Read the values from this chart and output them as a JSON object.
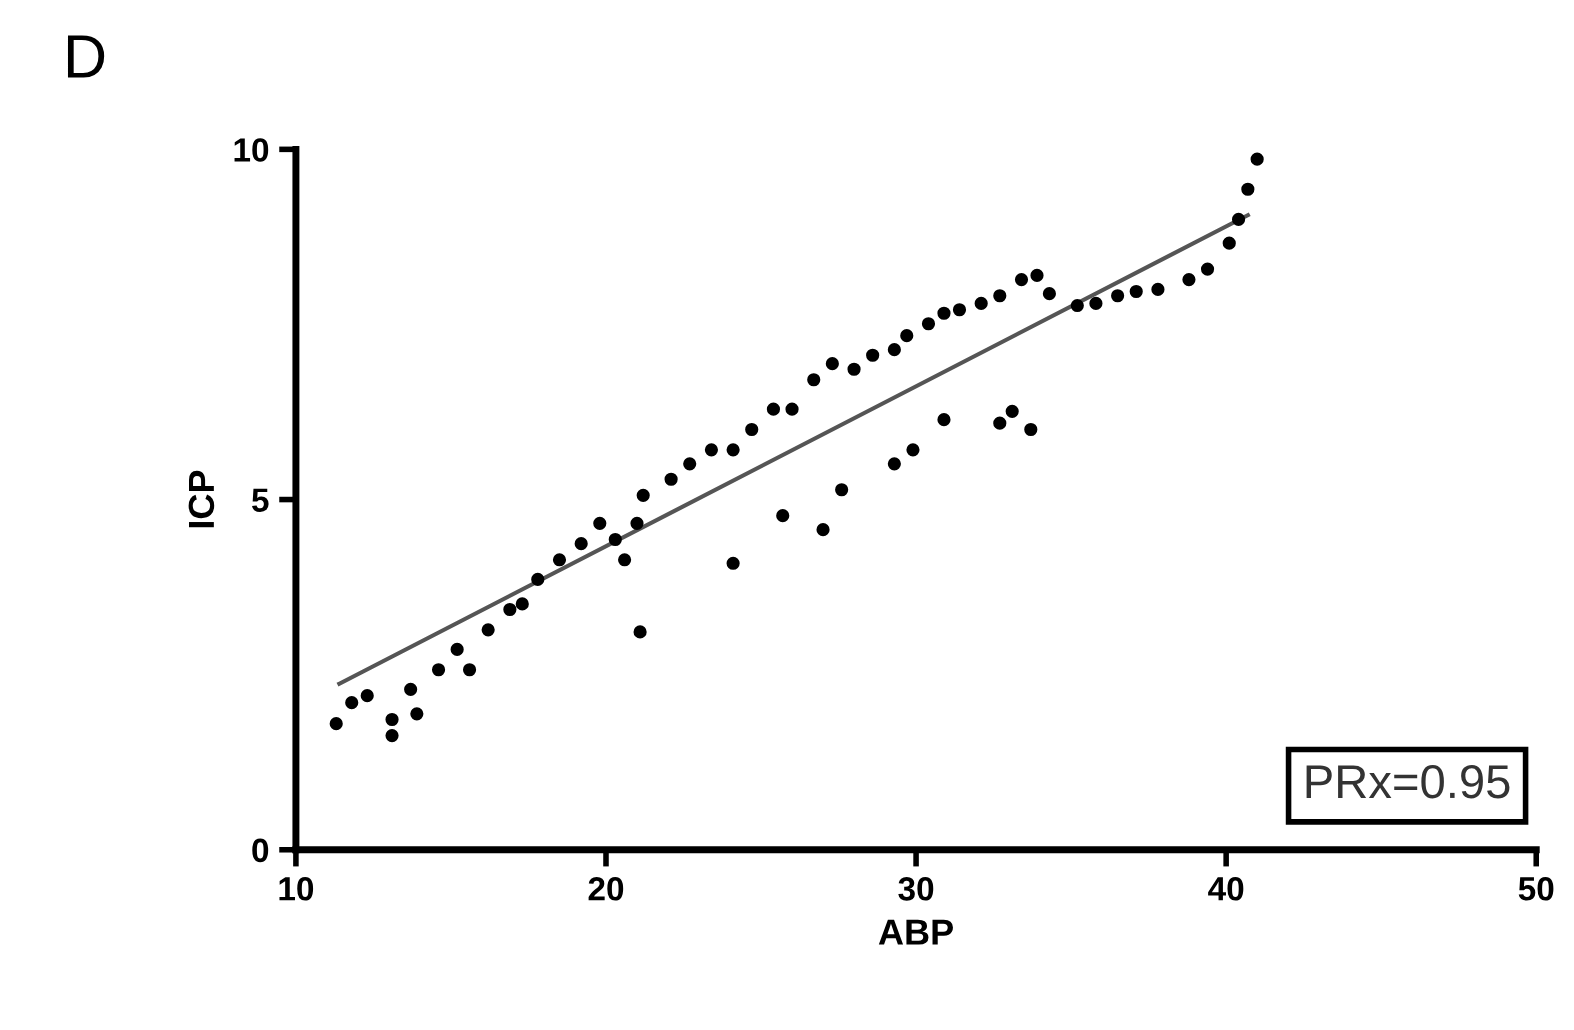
{
  "chart_data": {
    "type": "scatter",
    "title": "D",
    "xlabel": "ABP",
    "ylabel": "ICP",
    "xlim": [
      10,
      50
    ],
    "ylim": [
      0,
      10
    ],
    "xticks": [
      10,
      20,
      30,
      40,
      50
    ],
    "yticks": [
      0,
      5,
      10
    ],
    "grid": false,
    "legend": false,
    "annotations": [
      "PRx=0.95"
    ],
    "series": [
      {
        "color": "#000000",
        "marker": "circle",
        "x": [
          11.3,
          11.8,
          12.3,
          13.1,
          13.1,
          13.7,
          13.9,
          14.6,
          15.2,
          15.6,
          16.2,
          16.9,
          17.3,
          17.8,
          18.5,
          19.2,
          19.8,
          20.3,
          20.6,
          21.0,
          21.1,
          21.2,
          22.1,
          22.7,
          23.4,
          24.1,
          24.7,
          25.4,
          26.0,
          26.7,
          27.3,
          28.0,
          28.6,
          29.3,
          29.7,
          30.4,
          30.9,
          31.4,
          32.1,
          32.7,
          33.4,
          33.9,
          34.3,
          35.2,
          35.8,
          36.5,
          37.1,
          37.8,
          38.8,
          39.4,
          40.1,
          40.4,
          40.7,
          41.0,
          24.1,
          25.7,
          27.0,
          27.6,
          29.3,
          29.9,
          30.9,
          32.7,
          33.7,
          33.1
        ],
        "values": [
          1.8,
          2.1,
          2.2,
          1.86,
          1.63,
          2.29,
          1.94,
          2.57,
          2.86,
          2.57,
          3.14,
          3.43,
          3.51,
          3.86,
          4.14,
          4.37,
          4.66,
          4.43,
          4.14,
          4.66,
          3.11,
          5.06,
          5.29,
          5.51,
          5.71,
          5.71,
          6.0,
          6.29,
          6.29,
          6.71,
          6.94,
          6.86,
          7.06,
          7.14,
          7.34,
          7.51,
          7.66,
          7.71,
          7.8,
          7.91,
          8.14,
          8.2,
          7.94,
          7.77,
          7.8,
          7.91,
          7.97,
          8.0,
          8.14,
          8.29,
          8.66,
          9.0,
          9.43,
          9.86,
          4.09,
          4.77,
          4.57,
          5.14,
          5.51,
          5.71,
          6.14,
          6.09,
          6.0,
          6.26
        ]
      },
      {
        "type": "line",
        "color": "#555555",
        "line_style": "solid",
        "marker": "none",
        "x": [
          11.4,
          40.7
        ],
        "values": [
          2.37,
          9.06
        ]
      }
    ]
  }
}
